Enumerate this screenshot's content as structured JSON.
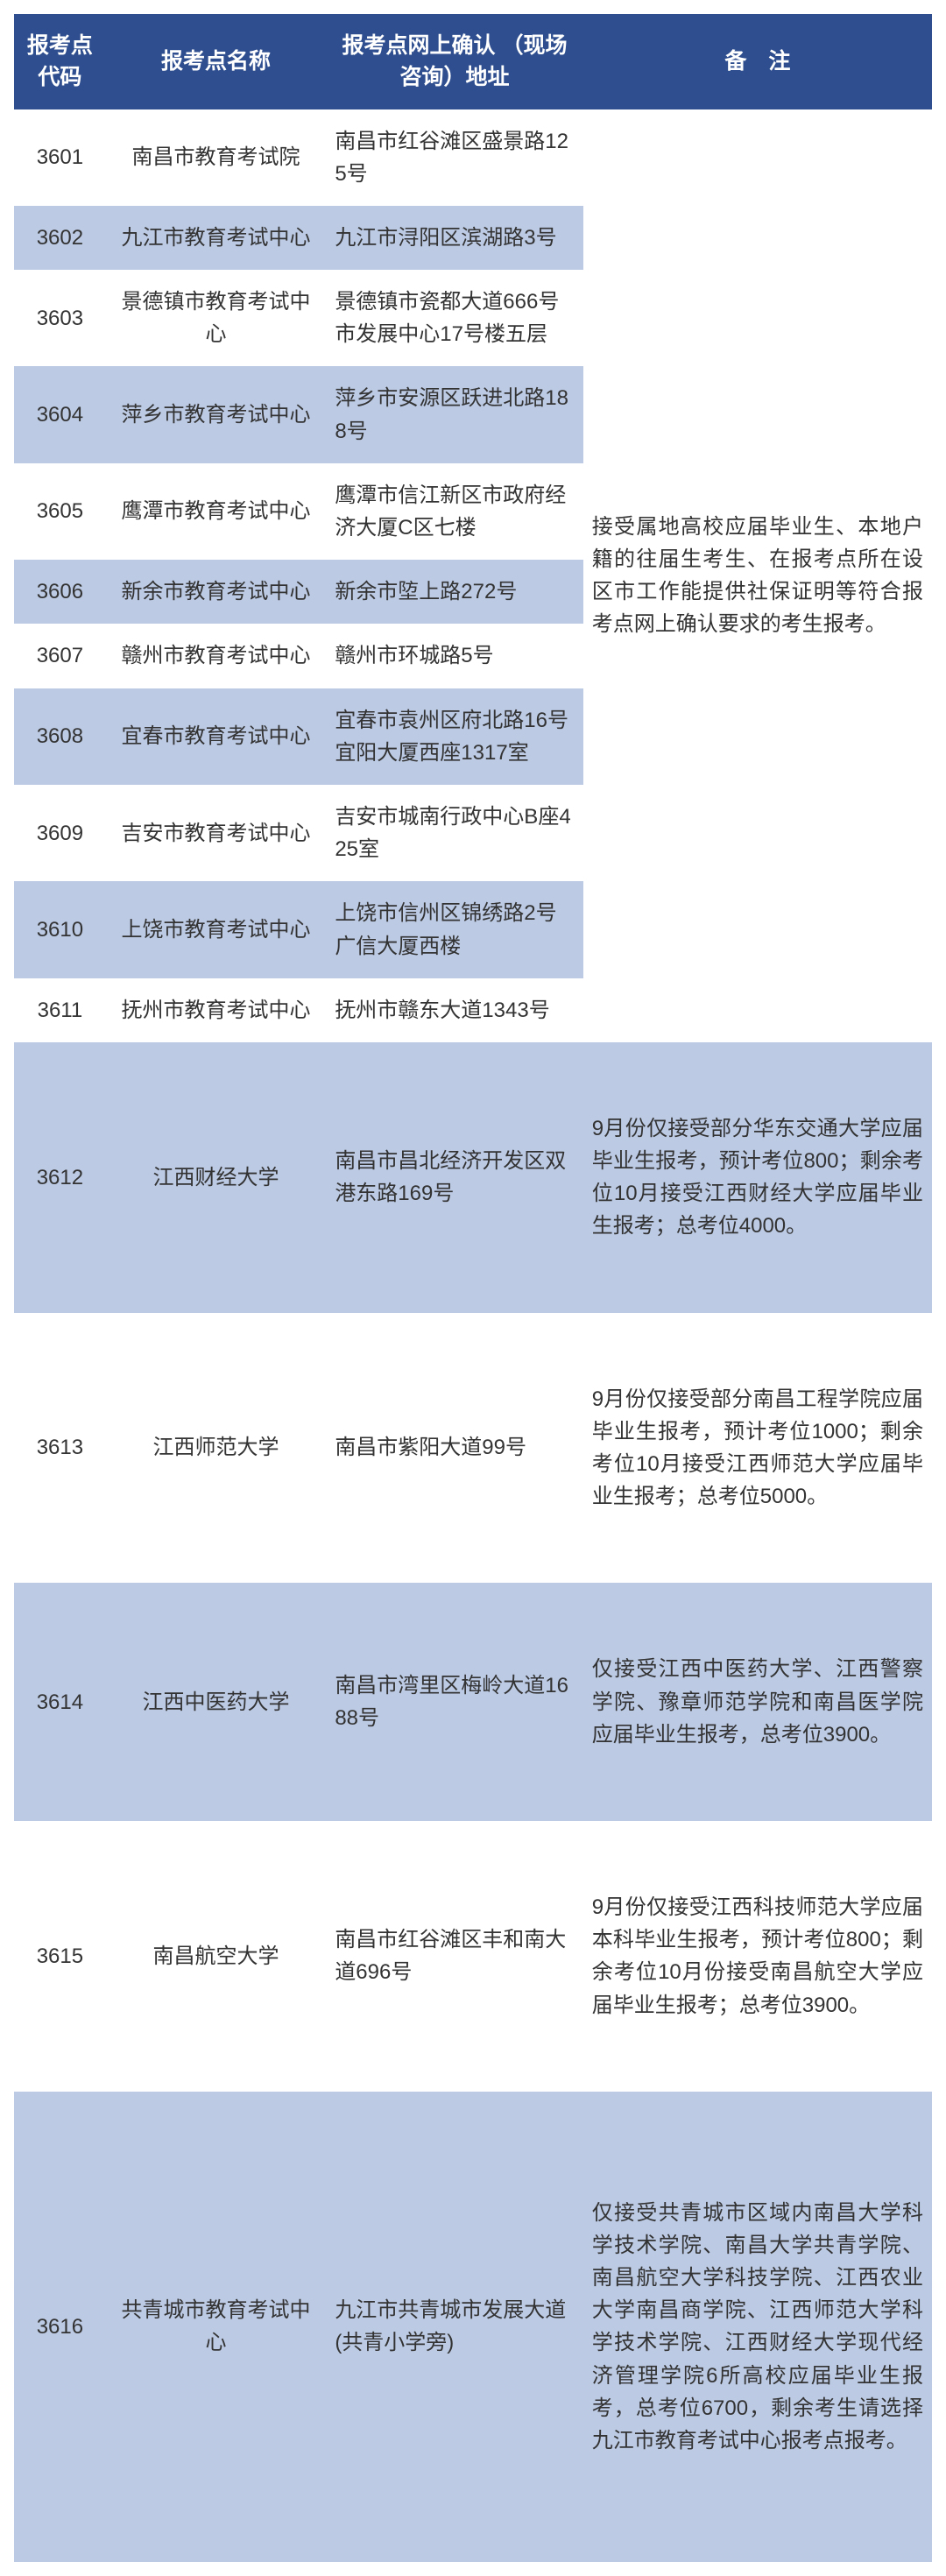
{
  "header": {
    "code": "报考点代码",
    "name": "报考点名称",
    "addr": "报考点网上确认\n（现场咨询）地址",
    "note": "备　注"
  },
  "group1_note": "接受属地高校应届毕业生、本地户籍的往届生考生、在报考点所在设区市工作能提供社保证明等符合报考点网上确认要求的考生报考。",
  "group1": [
    {
      "code": "3601",
      "name": "南昌市教育考试院",
      "addr": "南昌市红谷滩区盛景路125号"
    },
    {
      "code": "3602",
      "name": "九江市教育考试中心",
      "addr": "九江市浔阳区滨湖路3号"
    },
    {
      "code": "3603",
      "name": "景德镇市教育考试中心",
      "addr": "景德镇市瓷都大道666号市发展中心17号楼五层"
    },
    {
      "code": "3604",
      "name": "萍乡市教育考试中心",
      "addr": "萍乡市安源区跃进北路188号"
    },
    {
      "code": "3605",
      "name": "鹰潭市教育考试中心",
      "addr": "鹰潭市信江新区市政府经济大厦C区七楼"
    },
    {
      "code": "3606",
      "name": "新余市教育考试中心",
      "addr": "新余市埅上路272号"
    },
    {
      "code": "3607",
      "name": "赣州市教育考试中心",
      "addr": "赣州市环城路5号"
    },
    {
      "code": "3608",
      "name": "宜春市教育考试中心",
      "addr": "宜春市袁州区府北路16号宜阳大厦西座1317室"
    },
    {
      "code": "3609",
      "name": "吉安市教育考试中心",
      "addr": "吉安市城南行政中心B座425室"
    },
    {
      "code": "3610",
      "name": "上饶市教育考试中心",
      "addr": "上饶市信州区锦绣路2号广信大厦西楼"
    },
    {
      "code": "3611",
      "name": "抚州市教育考试中心",
      "addr": "抚州市赣东大道1343号"
    }
  ],
  "group2": [
    {
      "code": "3612",
      "name": "江西财经大学",
      "addr": "南昌市昌北经济开发区双港东路169号",
      "note": "9月份仅接受部分华东交通大学应届毕业生报考，预计考位800；剩余考位10月接受江西财经大学应届毕业生报考；总考位4000。",
      "cls": "tall"
    },
    {
      "code": "3613",
      "name": "江西师范大学",
      "addr": "南昌市紫阳大道99号",
      "note": "9月份仅接受部分南昌工程学院应届毕业生报考，预计考位1000；剩余考位10月接受江西师范大学应届毕业生报考；总考位5000。",
      "cls": "tall"
    },
    {
      "code": "3614",
      "name": "江西中医药大学",
      "addr": "南昌市湾里区梅岭大道1688号",
      "note": "仅接受江西中医药大学、江西警察学院、豫章师范学院和南昌医学院应届毕业生报考，总考位3900。",
      "cls": "tall"
    },
    {
      "code": "3615",
      "name": "南昌航空大学",
      "addr": "南昌市红谷滩区丰和南大道696号",
      "note": "9月份仅接受江西科技师范大学应届本科毕业生报考，预计考位800；剩余考位10月份接受南昌航空大学应届毕业生报考；总考位3900。",
      "cls": "tall"
    },
    {
      "code": "3616",
      "name": "共青城市教育考试中心",
      "addr": "九江市共青城市发展大道(共青小学旁)",
      "note": "仅接受共青城市区域内南昌大学科学技术学院、南昌大学共青学院、南昌航空大学科技学院、江西农业大学南昌商学院、江西师范大学科学技术学院、江西财经大学现代经济管理学院6所高校应届毕业生报考，总考位6700，剩余考生请选择九江市教育考试中心报考点报考。",
      "cls": "tall2"
    }
  ],
  "colors": {
    "header_bg": "#2e4e8f",
    "header_fg": "#ffffff",
    "row_alt": "#bccae4",
    "row_base": "#ffffff"
  }
}
